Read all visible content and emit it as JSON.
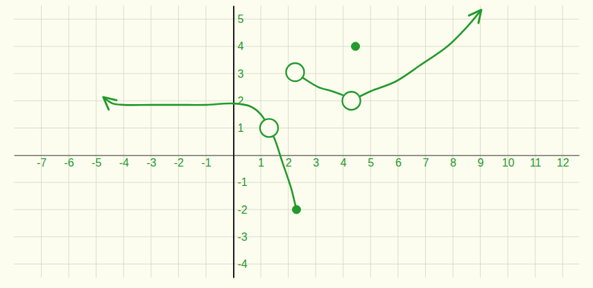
{
  "chart_data": {
    "type": "line",
    "xlim": [
      -8,
      12.6
    ],
    "ylim": [
      -4.5,
      5.5
    ],
    "xticks": [
      -7,
      -6,
      -5,
      -4,
      -3,
      -2,
      -1,
      1,
      2,
      3,
      4,
      5,
      6,
      7,
      8,
      9,
      10,
      11,
      12
    ],
    "yticks": [
      -4,
      -3,
      -2,
      -1,
      1,
      2,
      3,
      4,
      5
    ],
    "grid": true,
    "color": "#229a2c",
    "series": [
      {
        "type": "line",
        "marker": "arrow-start",
        "x": [
          -4.7,
          -4.4,
          -4.0,
          -3.0,
          -2.0,
          -1.0,
          0.0,
          0.6,
          1.0,
          1.3
        ],
        "values": [
          2.1,
          1.9,
          1.85,
          1.85,
          1.85,
          1.85,
          1.9,
          1.8,
          1.5,
          1.0
        ]
      },
      {
        "type": "line",
        "x": [
          1.3,
          1.5,
          1.8,
          2.1,
          2.25,
          2.3
        ],
        "values": [
          1.0,
          0.6,
          -0.3,
          -1.2,
          -1.8,
          -2.0
        ]
      },
      {
        "type": "line",
        "x": [
          2.25,
          2.6,
          3.1,
          3.6,
          4.0,
          4.3
        ],
        "values": [
          3.05,
          2.8,
          2.5,
          2.35,
          2.2,
          2.0
        ]
      },
      {
        "type": "line",
        "marker": "arrow-end",
        "x": [
          4.3,
          5.0,
          5.9,
          6.8,
          7.8,
          8.5,
          9.0
        ],
        "values": [
          2.0,
          2.35,
          2.7,
          3.3,
          4.0,
          4.7,
          5.3
        ]
      },
      {
        "type": "scatter",
        "marker": "open",
        "x": [
          1.3,
          2.25,
          4.3
        ],
        "values": [
          1.0,
          3.05,
          2.0
        ]
      },
      {
        "type": "scatter",
        "marker": "filled",
        "x": [
          2.3,
          4.45
        ],
        "values": [
          -2.0,
          4.0
        ]
      }
    ]
  }
}
